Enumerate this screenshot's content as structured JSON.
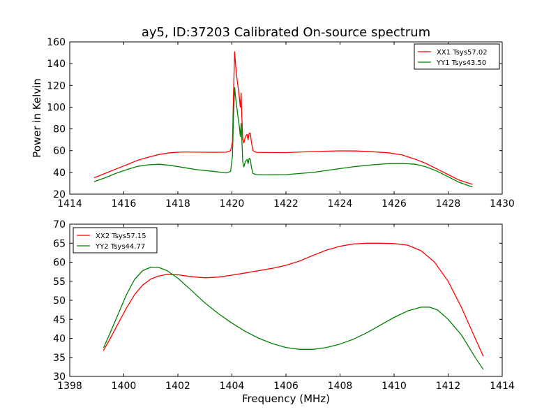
{
  "figure": {
    "title": "ay5, ID:37203 Calibrated On-source spectrum"
  },
  "chart_data": [
    {
      "type": "line",
      "title": "ay5, ID:37203 Calibrated On-source spectrum",
      "xlabel": "",
      "ylabel": "Power in Kelvin",
      "xlim": [
        1414,
        1430
      ],
      "ylim": [
        20,
        160
      ],
      "xticks": [
        1414,
        1416,
        1418,
        1420,
        1422,
        1424,
        1426,
        1428,
        1430
      ],
      "yticks": [
        20,
        40,
        60,
        80,
        100,
        120,
        140,
        160
      ],
      "grid": false,
      "legend_position": "top-right",
      "series": [
        {
          "name": "XX1 Tsys57.02",
          "color": "#ff0000",
          "x": [
            1414.9,
            1415.3,
            1415.7,
            1416.1,
            1416.5,
            1416.9,
            1417.3,
            1417.7,
            1418.2,
            1418.7,
            1419.3,
            1419.8,
            1419.95,
            1420.02,
            1420.06,
            1420.1,
            1420.14,
            1420.18,
            1420.22,
            1420.27,
            1420.31,
            1420.34,
            1420.37,
            1420.4,
            1420.44,
            1420.5,
            1420.56,
            1420.6,
            1420.64,
            1420.68,
            1420.72,
            1420.78,
            1420.9,
            1421.2,
            1422.0,
            1423.0,
            1424.0,
            1424.6,
            1425.2,
            1425.8,
            1426.3,
            1426.8,
            1427.2,
            1427.6,
            1428.0,
            1428.4,
            1428.9
          ],
          "values": [
            35,
            39,
            43,
            47,
            51,
            54,
            56.5,
            58,
            58.8,
            58.6,
            58.5,
            58.6,
            60,
            68,
            112,
            151,
            138,
            128,
            120,
            110,
            100,
            113,
            90,
            71,
            67,
            73,
            75,
            70,
            76,
            76,
            68,
            60,
            58.5,
            58.3,
            58.2,
            59.2,
            59.8,
            59.7,
            59,
            58,
            56,
            52,
            48,
            43,
            38,
            33,
            29
          ]
        },
        {
          "name": "YY1 Tsys43.50",
          "color": "#008000",
          "x": [
            1414.9,
            1415.3,
            1415.7,
            1416.1,
            1416.5,
            1416.9,
            1417.3,
            1417.7,
            1418.2,
            1418.7,
            1419.3,
            1419.8,
            1419.95,
            1420.02,
            1420.06,
            1420.1,
            1420.14,
            1420.18,
            1420.22,
            1420.27,
            1420.31,
            1420.34,
            1420.37,
            1420.4,
            1420.44,
            1420.5,
            1420.56,
            1420.6,
            1420.64,
            1420.68,
            1420.72,
            1420.78,
            1420.9,
            1421.2,
            1422.0,
            1423.0,
            1424.0,
            1424.6,
            1425.2,
            1425.8,
            1426.3,
            1426.8,
            1427.2,
            1427.6,
            1428.0,
            1428.4,
            1428.9
          ],
          "values": [
            31.5,
            35,
            39,
            42.5,
            45.5,
            47,
            47.5,
            46.5,
            44.5,
            42.5,
            41,
            39.5,
            41,
            55,
            92,
            118,
            108,
            100,
            92,
            83,
            73,
            85,
            70,
            50,
            45,
            50,
            52,
            48,
            53,
            52,
            45,
            39,
            38,
            37.7,
            38,
            40,
            43.5,
            45.5,
            47,
            48,
            48.2,
            47.5,
            45,
            41,
            36,
            31,
            26.5
          ]
        }
      ]
    },
    {
      "type": "line",
      "title": "",
      "xlabel": "Frequency (MHz)",
      "ylabel": "",
      "xlim": [
        1398,
        1414
      ],
      "ylim": [
        30,
        70
      ],
      "xticks": [
        1398,
        1400,
        1402,
        1404,
        1406,
        1408,
        1410,
        1412,
        1414
      ],
      "yticks": [
        30,
        35,
        40,
        45,
        50,
        55,
        60,
        65,
        70
      ],
      "grid": false,
      "legend_position": "top-left",
      "series": [
        {
          "name": "XX2 Tsys57.15",
          "color": "#ff0000",
          "x": [
            1399.25,
            1399.5,
            1399.8,
            1400.1,
            1400.4,
            1400.7,
            1401.0,
            1401.3,
            1401.6,
            1402.0,
            1402.5,
            1403.0,
            1403.5,
            1404.0,
            1404.5,
            1405.0,
            1405.5,
            1406.0,
            1406.5,
            1407.0,
            1407.5,
            1408.0,
            1408.5,
            1409.0,
            1409.5,
            1410.0,
            1410.5,
            1411.0,
            1411.5,
            1412.0,
            1412.5,
            1413.0,
            1413.3
          ],
          "values": [
            36.8,
            40,
            44,
            48,
            51.5,
            54,
            55.6,
            56.4,
            56.8,
            56.7,
            56.2,
            55.9,
            56.1,
            56.6,
            57.2,
            57.8,
            58.4,
            59.2,
            60.3,
            61.8,
            63.2,
            64.2,
            64.8,
            65,
            65,
            64.9,
            64.5,
            63,
            60,
            55,
            48,
            40,
            35.3
          ]
        },
        {
          "name": "YY2 Tsys44.77",
          "color": "#008000",
          "x": [
            1399.25,
            1399.5,
            1399.8,
            1400.1,
            1400.4,
            1400.7,
            1401.0,
            1401.3,
            1401.6,
            1402.0,
            1402.5,
            1403.0,
            1403.5,
            1404.0,
            1404.5,
            1405.0,
            1405.5,
            1406.0,
            1406.5,
            1407.0,
            1407.5,
            1408.0,
            1408.5,
            1409.0,
            1409.5,
            1410.0,
            1410.5,
            1411.0,
            1411.3,
            1411.6,
            1412.0,
            1412.5,
            1413.0,
            1413.3
          ],
          "values": [
            37.5,
            41.5,
            46.5,
            51.5,
            55.5,
            57.8,
            58.7,
            58.6,
            57.8,
            55.8,
            52.6,
            49.3,
            46.5,
            44,
            41.8,
            40,
            38.6,
            37.6,
            37.1,
            37.1,
            37.6,
            38.5,
            39.8,
            41.5,
            43.5,
            45.5,
            47.2,
            48.2,
            48.2,
            47.5,
            45,
            40.8,
            35,
            31.8
          ]
        }
      ]
    }
  ]
}
